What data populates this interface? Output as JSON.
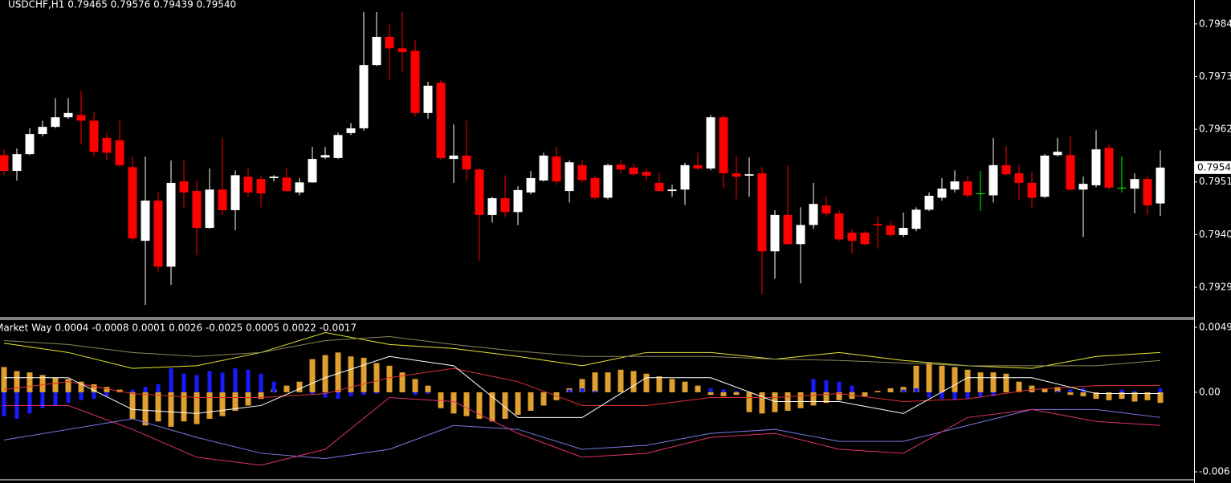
{
  "chart_data": [
    {
      "type": "candlestick",
      "title": "USDCHF,H1  0.79465 0.79576 0.79439 0.79540",
      "up_color": "#ffffff",
      "down_color": "#ff0000",
      "doji_color": "#00ff00",
      "ylim": [
        0.79228,
        0.7989
      ],
      "yticks": [
        0.7984,
        0.7973,
        0.7962,
        0.7951,
        {
          "value": 0.794,
          "label": "0.7940"
        },
        0.7929
      ],
      "current_price": {
        "value": 0.7954,
        "label": "0.79540"
      },
      "open": [
        0.79566,
        0.79533,
        0.79568,
        0.7961,
        0.79625,
        0.79645,
        0.7965,
        0.79638,
        0.79602,
        0.79597,
        0.79541,
        0.79387,
        0.79471,
        0.79333,
        0.79511,
        0.79491,
        0.79414,
        0.79494,
        0.79451,
        0.79521,
        0.79516,
        0.79518,
        0.79519,
        0.79488,
        0.79509,
        0.79561,
        0.7956,
        0.79612,
        0.79622,
        0.79754,
        0.79813,
        0.79789,
        0.79784,
        0.79654,
        0.79717,
        0.79558,
        0.79565,
        0.79536,
        0.79441,
        0.79476,
        0.79447,
        0.79488,
        0.79513,
        0.79563,
        0.79491,
        0.79545,
        0.79518,
        0.79477,
        0.79546,
        0.7954,
        0.79531,
        0.79508,
        0.79491,
        0.79494,
        0.79545,
        0.79538,
        0.79645,
        0.79528,
        0.79523,
        0.79528,
        0.79365,
        0.79441,
        0.7938,
        0.7942,
        0.79461,
        0.79444,
        0.79404,
        0.79404,
        0.79422,
        0.79419,
        0.79399,
        0.79412,
        0.79452,
        0.79477,
        0.79494,
        0.79511,
        0.79486,
        0.79482,
        0.79545,
        0.79528,
        0.79508,
        0.79479,
        0.79566,
        0.79566,
        0.79494,
        0.79503,
        0.79581,
        0.79498,
        0.79496,
        0.79516,
        0.79465
      ],
      "high": [
        0.79578,
        0.7958,
        0.79622,
        0.79638,
        0.79685,
        0.79685,
        0.797,
        0.79655,
        0.79613,
        0.79638,
        0.79563,
        0.79563,
        0.79488,
        0.79555,
        0.79555,
        0.79513,
        0.79538,
        0.79602,
        0.79534,
        0.79538,
        0.79524,
        0.79524,
        0.79538,
        0.79518,
        0.79583,
        0.79583,
        0.79613,
        0.79633,
        0.79865,
        0.79865,
        0.7984,
        0.79865,
        0.79806,
        0.79719,
        0.79722,
        0.7963,
        0.79638,
        0.79538,
        0.79479,
        0.79524,
        0.79501,
        0.79533,
        0.79571,
        0.79583,
        0.79555,
        0.79555,
        0.79524,
        0.79548,
        0.79555,
        0.79548,
        0.79538,
        0.79529,
        0.79504,
        0.7955,
        0.79571,
        0.7965,
        0.7965,
        0.79563,
        0.79561,
        0.79541,
        0.79451,
        0.79543,
        0.79457,
        0.79508,
        0.79479,
        0.79451,
        0.79412,
        0.79407,
        0.79437,
        0.79429,
        0.79446,
        0.79457,
        0.79488,
        0.79518,
        0.79534,
        0.79523,
        0.79533,
        0.79602,
        0.79585,
        0.79546,
        0.79531,
        0.79568,
        0.79602,
        0.79605,
        0.79521,
        0.79618,
        0.79588,
        0.79563,
        0.79528,
        0.79524,
        0.79576
      ],
      "low": [
        0.79524,
        0.79513,
        0.79566,
        0.79605,
        0.79622,
        0.79642,
        0.79588,
        0.79563,
        0.79555,
        0.79541,
        0.79387,
        0.79253,
        0.79323,
        0.79295,
        0.79454,
        0.79357,
        0.79412,
        0.79441,
        0.79409,
        0.79479,
        0.79457,
        0.79511,
        0.79488,
        0.79482,
        0.79508,
        0.79558,
        0.79558,
        0.79608,
        0.79617,
        0.79752,
        0.79722,
        0.79739,
        0.79647,
        0.79642,
        0.79555,
        0.79508,
        0.79513,
        0.79345,
        0.79425,
        0.79437,
        0.7942,
        0.79484,
        0.79511,
        0.79504,
        0.79467,
        0.79508,
        0.79474,
        0.79474,
        0.79529,
        0.79521,
        0.79513,
        0.79488,
        0.79479,
        0.79462,
        0.79534,
        0.79534,
        0.79496,
        0.79474,
        0.79479,
        0.79275,
        0.79308,
        0.79379,
        0.79298,
        0.79412,
        0.79437,
        0.79387,
        0.7936,
        0.79377,
        0.7937,
        0.79395,
        0.79395,
        0.79407,
        0.79449,
        0.79471,
        0.79488,
        0.79477,
        0.79449,
        0.79467,
        0.79523,
        0.79471,
        0.79454,
        0.79476,
        0.79563,
        0.79491,
        0.79395,
        0.79499,
        0.79494,
        0.79488,
        0.79444,
        0.79441,
        0.79439
      ],
      "close": [
        0.79533,
        0.79568,
        0.7961,
        0.79625,
        0.79645,
        0.79654,
        0.79638,
        0.79573,
        0.79571,
        0.79545,
        0.79392,
        0.79471,
        0.79333,
        0.79508,
        0.79488,
        0.79414,
        0.79494,
        0.79451,
        0.79524,
        0.79488,
        0.79486,
        0.79521,
        0.79491,
        0.79509,
        0.79558,
        0.79566,
        0.79608,
        0.79622,
        0.79754,
        0.79813,
        0.79789,
        0.79781,
        0.79654,
        0.79711,
        0.7956,
        0.79565,
        0.79536,
        0.79441,
        0.79476,
        0.79447,
        0.79493,
        0.79518,
        0.79565,
        0.79511,
        0.79551,
        0.79514,
        0.79477,
        0.79545,
        0.79536,
        0.79526,
        0.79523,
        0.79491,
        0.79494,
        0.79545,
        0.79538,
        0.79645,
        0.79528,
        0.79521,
        0.79526,
        0.79365,
        0.79441,
        0.7938,
        0.7942,
        0.79464,
        0.79444,
        0.7939,
        0.79387,
        0.7938,
        0.79419,
        0.79399,
        0.79414,
        0.79452,
        0.79481,
        0.79496,
        0.79511,
        0.79482,
        0.79486,
        0.79545,
        0.79526,
        0.79508,
        0.79477,
        0.79565,
        0.79573,
        0.79494,
        0.79506,
        0.79578,
        0.79498,
        0.79498,
        0.79516,
        0.79461,
        0.7954
      ]
    },
    {
      "type": "combo",
      "title": "Market Way 0.0004 -0.0008 0.0001 0.0026 -0.0025 0.0005 0.0022 -0.0017",
      "ylim": [
        -0.0066,
        0.0055
      ],
      "yticks": [
        0.0049,
        {
          "value": 0,
          "label": "0.00"
        },
        -0.006
      ],
      "series": [
        {
          "kind": "bar",
          "color": "#e0a030",
          "values": [
            0.0019,
            0.0016,
            0.0015,
            0.0013,
            0.0011,
            0.001,
            0.0008,
            0.0006,
            0.0004,
            0.0002,
            -0.002,
            -0.0025,
            -0.0022,
            -0.0026,
            -0.0022,
            -0.0024,
            -0.002,
            -0.0018,
            -0.0014,
            -0.001,
            -0.0005,
            0.0002,
            0.0005,
            0.0008,
            0.0025,
            0.0028,
            0.003,
            0.0027,
            0.0026,
            0.0022,
            0.002,
            0.0015,
            0.001,
            0.0005,
            -0.0012,
            -0.0016,
            -0.0018,
            -0.002,
            -0.0022,
            -0.002,
            -0.0017,
            -0.0014,
            -0.001,
            -0.0006,
            0.0003,
            0.001,
            0.0015,
            0.0015,
            0.0017,
            0.0016,
            0.0014,
            0.0012,
            0.001,
            0.0008,
            0.0005,
            -0.0002,
            -0.0003,
            -0.0002,
            -0.0015,
            -0.0016,
            -0.0015,
            -0.0014,
            -0.0012,
            -0.001,
            -0.0008,
            -0.0006,
            -0.0005,
            -0.0003,
            0.0001,
            0.0003,
            0.0004,
            0.002,
            0.0022,
            0.002,
            0.0019,
            0.0017,
            0.0015,
            0.0015,
            0.0014,
            0.0008,
            0.0005,
            0.0003,
            0.0004,
            -0.0002,
            -0.0003,
            -0.0005,
            -0.0006,
            -0.0005,
            -0.0007,
            -0.0006,
            -0.0008
          ]
        },
        {
          "kind": "bar",
          "color": "#1a1aff",
          "values": [
            -0.0018,
            -0.002,
            -0.0016,
            -0.0012,
            -0.001,
            -0.0008,
            -0.0006,
            -0.0005,
            -0.0003,
            null,
            0.0002,
            0.0004,
            0.0006,
            0.0018,
            0.0014,
            0.0013,
            0.0016,
            0.0015,
            0.0018,
            0.0017,
            0.0014,
            0.0008,
            null,
            null,
            -0.0002,
            -0.0004,
            -0.0005,
            -0.0003,
            -0.0002,
            -0.0001,
            null,
            null,
            -0.0002,
            -0.0001,
            null,
            null,
            null,
            null,
            null,
            null,
            null,
            null,
            null,
            null,
            0.0002,
            0.0003,
            0.0001,
            null,
            null,
            null,
            null,
            null,
            null,
            null,
            null,
            0.0003,
            0.0002,
            0.0001,
            null,
            null,
            null,
            null,
            null,
            0.001,
            0.0009,
            0.0008,
            0.0005,
            null,
            null,
            null,
            0.0002,
            0.0003,
            -0.0004,
            -0.0005,
            -0.0006,
            -0.0005,
            -0.0004,
            -0.0003,
            null,
            null,
            null,
            null,
            0.0001,
            0.0002,
            0.0003,
            null,
            null,
            0.0002,
            0.0001,
            null,
            0.0003
          ]
        },
        {
          "kind": "line",
          "color": "#e8e830",
          "x": [
            0,
            5,
            10,
            15,
            20,
            25,
            30,
            35,
            40,
            45,
            50,
            55,
            60,
            65,
            70,
            75,
            80,
            85,
            90
          ],
          "values": [
            0.0037,
            0.003,
            0.0018,
            0.002,
            0.003,
            0.0045,
            0.0036,
            0.0033,
            0.0027,
            0.002,
            0.003,
            0.003,
            0.0025,
            0.003,
            0.0024,
            0.002,
            0.0018,
            0.0027,
            0.003
          ]
        },
        {
          "kind": "line",
          "color": "#8a8a5a",
          "x": [
            0,
            5,
            10,
            15,
            20,
            25,
            30,
            35,
            40,
            45,
            50,
            55,
            60,
            65,
            70,
            75,
            80,
            85,
            90
          ],
          "values": [
            0.0039,
            0.0036,
            0.003,
            0.0027,
            0.003,
            0.0039,
            0.0042,
            0.0036,
            0.0031,
            0.0027,
            0.0027,
            0.0027,
            0.0025,
            0.0024,
            0.0022,
            0.002,
            0.002,
            0.002,
            0.0024
          ]
        },
        {
          "kind": "line",
          "color": "#e03030",
          "x": [
            0,
            5,
            10,
            15,
            20,
            25,
            30,
            35,
            40,
            45,
            50,
            55,
            60,
            65,
            70,
            75,
            80,
            85,
            90
          ],
          "values": [
            0.0002,
            0.0008,
            -0.0001,
            -0.0004,
            -0.0004,
            -0.0001,
            0.0011,
            0.0018,
            0.0008,
            -0.001,
            -0.001,
            -0.0004,
            -0.0004,
            -0.0001,
            -0.0007,
            -0.0005,
            0.0002,
            0.0005,
            0.0005
          ]
        },
        {
          "kind": "line",
          "color": "#ffffff",
          "x": [
            0,
            5,
            10,
            15,
            20,
            25,
            30,
            35,
            40,
            45,
            50,
            55,
            60,
            65,
            70,
            75,
            80,
            85,
            90
          ],
          "values": [
            0.0011,
            0.0011,
            -0.0013,
            -0.0016,
            -0.001,
            0.0011,
            0.0027,
            0.002,
            -0.0019,
            -0.0019,
            0.0011,
            0.0011,
            -0.0007,
            -0.0007,
            -0.0016,
            0.0011,
            0.0011,
            -0.0001,
            -0.0001
          ]
        },
        {
          "kind": "line",
          "color": "#7a7ae8",
          "x": [
            0,
            5,
            10,
            15,
            20,
            25,
            30,
            35,
            40,
            45,
            50,
            55,
            60,
            65,
            70,
            75,
            80,
            85,
            90
          ],
          "values": [
            -0.0036,
            -0.0028,
            -0.002,
            -0.0034,
            -0.0046,
            -0.005,
            -0.0043,
            -0.0025,
            -0.0028,
            -0.0043,
            -0.004,
            -0.0031,
            -0.0028,
            -0.0037,
            -0.0037,
            -0.0025,
            -0.0013,
            -0.0013,
            -0.0019
          ]
        },
        {
          "kind": "line",
          "color": "#e03070",
          "x": [
            0,
            5,
            10,
            15,
            20,
            25,
            30,
            35,
            40,
            45,
            50,
            55,
            60,
            65,
            70,
            75,
            80,
            85,
            90
          ],
          "values": [
            -0.001,
            -0.001,
            -0.0028,
            -0.0049,
            -0.0055,
            -0.0043,
            -0.0004,
            -0.0007,
            -0.0031,
            -0.0049,
            -0.0046,
            -0.0034,
            -0.0031,
            -0.0043,
            -0.0046,
            -0.0019,
            -0.0013,
            -0.0022,
            -0.0025
          ]
        }
      ]
    }
  ]
}
